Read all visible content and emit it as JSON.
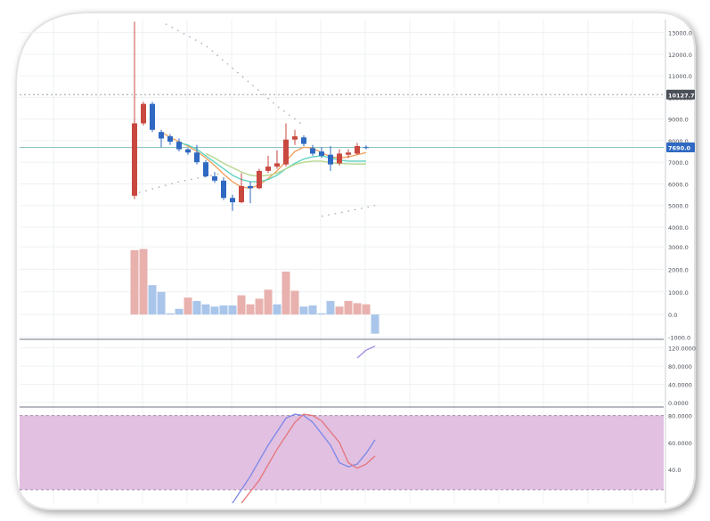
{
  "chart_data": [
    {
      "type": "candlestick",
      "pane": "price",
      "ylim": [
        3300,
        13600
      ],
      "y_ticks": [
        4000,
        5000,
        6000,
        7000,
        8000,
        9000,
        10000,
        11000,
        12000,
        13000
      ],
      "y_tick_labels": [
        "4000.0",
        "5000.0",
        "6000.0",
        "7000.0",
        "8000.0",
        "9000.0",
        "10000.0",
        "11000.0",
        "12000.0",
        "13000.0"
      ],
      "last_price_label": "7690.0",
      "marker_label": "10127.7",
      "marker_value": 10127.7,
      "last_price_value": 7690,
      "candles": [
        {
          "x": 0,
          "o": 5450,
          "h": 13500,
          "l": 5300,
          "c": 8800
        },
        {
          "x": 1,
          "o": 8800,
          "h": 9800,
          "l": 8700,
          "c": 9700
        },
        {
          "x": 2,
          "o": 9700,
          "h": 9800,
          "l": 8400,
          "c": 8500
        },
        {
          "x": 3,
          "o": 8400,
          "h": 8500,
          "l": 7700,
          "c": 8100
        },
        {
          "x": 4,
          "o": 8200,
          "h": 8300,
          "l": 7800,
          "c": 7950
        },
        {
          "x": 5,
          "o": 7950,
          "h": 8100,
          "l": 7500,
          "c": 7600
        },
        {
          "x": 6,
          "o": 7600,
          "h": 7650,
          "l": 7350,
          "c": 7450
        },
        {
          "x": 7,
          "o": 7450,
          "h": 7800,
          "l": 6900,
          "c": 7000
        },
        {
          "x": 8,
          "o": 7000,
          "h": 7100,
          "l": 6300,
          "c": 6350
        },
        {
          "x": 9,
          "o": 6350,
          "h": 6550,
          "l": 6050,
          "c": 6150
        },
        {
          "x": 10,
          "o": 6150,
          "h": 6300,
          "l": 5250,
          "c": 5350
        },
        {
          "x": 11,
          "o": 5350,
          "h": 5500,
          "l": 4750,
          "c": 5150
        },
        {
          "x": 12,
          "o": 5150,
          "h": 6500,
          "l": 5100,
          "c": 5900
        },
        {
          "x": 13,
          "o": 5900,
          "h": 6100,
          "l": 5100,
          "c": 5800
        },
        {
          "x": 14,
          "o": 5800,
          "h": 6700,
          "l": 5750,
          "c": 6600
        },
        {
          "x": 15,
          "o": 6600,
          "h": 7300,
          "l": 6500,
          "c": 6800
        },
        {
          "x": 16,
          "o": 6800,
          "h": 7550,
          "l": 6700,
          "c": 6950
        },
        {
          "x": 17,
          "o": 6900,
          "h": 8800,
          "l": 6800,
          "c": 8050
        },
        {
          "x": 18,
          "o": 8050,
          "h": 8500,
          "l": 7800,
          "c": 8200
        },
        {
          "x": 19,
          "o": 8150,
          "h": 8250,
          "l": 7750,
          "c": 7850
        },
        {
          "x": 20,
          "o": 7650,
          "h": 7800,
          "l": 7300,
          "c": 7400
        },
        {
          "x": 21,
          "o": 7500,
          "h": 7700,
          "l": 7200,
          "c": 7300
        },
        {
          "x": 22,
          "o": 7350,
          "h": 7750,
          "l": 6600,
          "c": 6900
        },
        {
          "x": 23,
          "o": 6950,
          "h": 7600,
          "l": 6850,
          "c": 7400
        },
        {
          "x": 24,
          "o": 7350,
          "h": 7600,
          "l": 7200,
          "c": 7450
        },
        {
          "x": 25,
          "o": 7400,
          "h": 7900,
          "l": 7350,
          "c": 7750
        },
        {
          "x": 26,
          "o": 7700,
          "h": 7780,
          "l": 7600,
          "c": 7690
        }
      ],
      "overlays": [
        {
          "name": "",
          "color": "#f0a261",
          "x": [
            3,
            4,
            5,
            6,
            7,
            8,
            9,
            10,
            11,
            12,
            13,
            14,
            15,
            16,
            17,
            18,
            19,
            20,
            21,
            22,
            23,
            24,
            25,
            26
          ],
          "y": [
            8400,
            8150,
            7950,
            7750,
            7500,
            7200,
            6850,
            6450,
            6100,
            5850,
            5800,
            5950,
            6250,
            6600,
            7050,
            7500,
            7700,
            7650,
            7450,
            7250,
            7200,
            7250,
            7350,
            7450
          ]
        },
        {
          "name": "",
          "color": "#5fd3c0",
          "x": [
            5,
            6,
            7,
            8,
            9,
            10,
            11,
            12,
            13,
            14,
            15,
            16,
            17,
            18,
            19,
            20,
            21,
            22,
            23,
            24,
            25,
            26
          ],
          "y": [
            7900,
            7800,
            7600,
            7300,
            7000,
            6700,
            6400,
            6200,
            6100,
            6100,
            6200,
            6400,
            6700,
            6950,
            7150,
            7250,
            7300,
            7200,
            7100,
            7050,
            7050,
            7050
          ]
        },
        {
          "name": "",
          "color": "#b5d78e",
          "x": [
            8,
            9,
            10,
            11,
            12,
            13,
            14,
            15,
            16,
            17,
            18,
            19,
            20,
            21,
            22,
            23,
            24,
            25,
            26
          ],
          "y": [
            7400,
            7200,
            6950,
            6750,
            6550,
            6400,
            6350,
            6400,
            6500,
            6700,
            6900,
            7000,
            7050,
            7050,
            6980,
            6950,
            6930,
            6920,
            6920
          ]
        }
      ],
      "dotted_channel": [
        {
          "x": [
            3.5,
            8,
            16,
            19
          ],
          "y": [
            13400,
            12400,
            9600,
            8700
          ]
        },
        {
          "x": [
            0.5,
            5,
            10
          ],
          "y": [
            5600,
            6100,
            6500
          ]
        },
        {
          "x": [
            21,
            23.5,
            27
          ],
          "y": [
            4500,
            4700,
            5000
          ]
        }
      ],
      "grid": true
    },
    {
      "type": "bar",
      "pane": "volume",
      "ylim": [
        -1100,
        3200
      ],
      "y_ticks": [
        -1000,
        0,
        1000,
        2000,
        3000
      ],
      "y_tick_labels": [
        "-1000.0",
        "0.0",
        "1000.0",
        "2000.0",
        "3000.0"
      ],
      "values": [
        2850,
        2900,
        1300,
        1000,
        50,
        250,
        750,
        600,
        450,
        350,
        400,
        400,
        850,
        450,
        700,
        1100,
        450,
        1900,
        1050,
        350,
        400,
        50,
        600,
        350,
        600,
        500,
        450,
        -850
      ],
      "colors": [
        "#e8b1ad",
        "#e8b1ad",
        "#a9c5ea",
        "#a9c5ea",
        "#a9c5ea",
        "#a9c5ea",
        "#e8b1ad",
        "#a9c5ea",
        "#a9c5ea",
        "#a9c5ea",
        "#a9c5ea",
        "#a9c5ea",
        "#e8b1ad",
        "#e8b1ad",
        "#e8b1ad",
        "#e8b1ad",
        "#a9c5ea",
        "#e8b1ad",
        "#e8b1ad",
        "#a9c5ea",
        "#a9c5ea",
        "#a9c5ea",
        "#a9c5ea",
        "#e8b1ad",
        "#e8b1ad",
        "#e8b1ad",
        "#e8b1ad",
        "#a9c5ea"
      ]
    },
    {
      "type": "line",
      "pane": "indicator",
      "ylim": [
        -10,
        135
      ],
      "y_ticks": [
        0,
        40,
        80,
        120
      ],
      "y_tick_labels": [
        "0.0000",
        "40.0000",
        "80.0000",
        "120.0000"
      ],
      "series": [
        {
          "name": "",
          "color": "#a28be4",
          "x": [
            25,
            26,
            27
          ],
          "y": [
            98,
            115,
            124
          ]
        }
      ]
    },
    {
      "type": "line",
      "pane": "oscillator",
      "ylim": [
        15,
        85
      ],
      "band": [
        25,
        80
      ],
      "band_color": "#dfbddf",
      "y_ticks": [
        40,
        60,
        80
      ],
      "y_tick_labels": [
        "40.0",
        "60.0000",
        "80.0000"
      ],
      "series": [
        {
          "name": "",
          "color": "#7b87e8",
          "x": [
            11,
            13,
            15,
            17,
            18,
            19,
            20,
            22,
            23,
            24,
            25,
            26,
            27
          ],
          "y": [
            15,
            35,
            58,
            78,
            81,
            80,
            75,
            58,
            45,
            42,
            44,
            52,
            62
          ]
        },
        {
          "name": "",
          "color": "#e57479",
          "x": [
            12,
            14,
            16,
            18,
            19,
            20,
            21,
            23,
            24,
            25,
            26,
            27
          ],
          "y": [
            15,
            32,
            55,
            75,
            81,
            80,
            76,
            60,
            45,
            41,
            44,
            50
          ]
        }
      ]
    }
  ]
}
